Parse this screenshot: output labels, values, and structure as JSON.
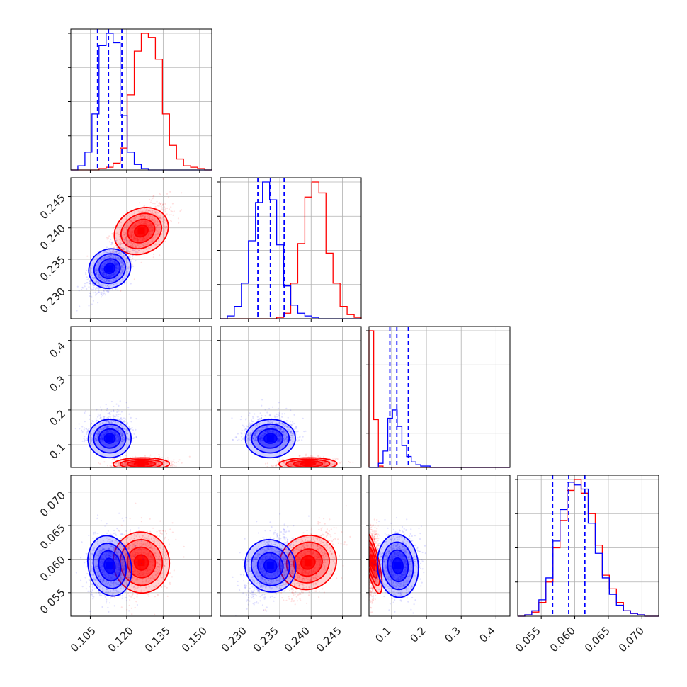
{
  "chart_data": {
    "type": "corner",
    "parameters": [
      {
        "range": [
          0.097,
          0.155
        ],
        "ticks": [
          "0.105",
          "0.120",
          "0.135",
          "0.150"
        ],
        "tick_values": [
          0.105,
          0.12,
          0.135,
          0.15
        ]
      },
      {
        "range": [
          0.2255,
          0.248
        ],
        "ticks": [
          "0.230",
          "0.235",
          "0.240",
          "0.245"
        ],
        "tick_values": [
          0.23,
          0.235,
          0.24,
          0.245
        ]
      },
      {
        "range": [
          0.035,
          0.44
        ],
        "ticks": [
          "0.1",
          "0.2",
          "0.3",
          "0.4"
        ],
        "tick_values": [
          0.1,
          0.2,
          0.3,
          0.4
        ]
      },
      {
        "range": [
          0.0515,
          0.0725
        ],
        "ticks": [
          "0.055",
          "0.060",
          "0.065",
          "0.070"
        ],
        "tick_values": [
          0.055,
          0.06,
          0.065,
          0.07
        ]
      }
    ],
    "series": [
      {
        "color": "#ff0000",
        "mean": [
          0.126,
          0.2395,
          0.045,
          0.0595
        ],
        "sd": [
          0.0055,
          0.0022,
          0.009,
          0.0024
        ]
      },
      {
        "color": "#0000ff",
        "mean": [
          0.113,
          0.2335,
          0.118,
          0.059
        ],
        "sd": [
          0.0042,
          0.0019,
          0.028,
          0.0024
        ],
        "quantiles": [
          [
            0.108,
            0.1125,
            0.118
          ],
          [
            0.2315,
            0.2335,
            0.2357
          ],
          [
            0.095,
            0.115,
            0.148
          ],
          [
            0.0567,
            0.0591,
            0.0615
          ]
        ]
      }
    ],
    "histograms": [
      {
        "bins": 20,
        "red": [
          0,
          0,
          0,
          0,
          1,
          2,
          5,
          16,
          55,
          87,
          100,
          97,
          81,
          41,
          18,
          8,
          3,
          2,
          1,
          0
        ],
        "blue": [
          0,
          3,
          13,
          41,
          91,
          100,
          93,
          40,
          13,
          4,
          1,
          0,
          0,
          0,
          0,
          0,
          0,
          0,
          0,
          0
        ]
      },
      {
        "bins": 20,
        "red": [
          0,
          0,
          0,
          0,
          0,
          0,
          0,
          0,
          1,
          4,
          26,
          55,
          89,
          100,
          92,
          48,
          26,
          9,
          3,
          1
        ],
        "blue": [
          0,
          2,
          9,
          26,
          57,
          85,
          100,
          87,
          54,
          24,
          10,
          4,
          2,
          1,
          0,
          0,
          0,
          0,
          0,
          0
        ]
      },
      {
        "bins": 30,
        "red": [
          100,
          35,
          1,
          0,
          0,
          0,
          0,
          0,
          0,
          0,
          0,
          0,
          0,
          0,
          0,
          0,
          0,
          0,
          0,
          0,
          0,
          0,
          0,
          0,
          0,
          0,
          0,
          0,
          0,
          0
        ],
        "blue": [
          0,
          0,
          3,
          12,
          36,
          42,
          30,
          16,
          8,
          4,
          2,
          1,
          1,
          0,
          0,
          0,
          0,
          0,
          0,
          0,
          0,
          0,
          0,
          0,
          0,
          0,
          0,
          0,
          0,
          0
        ]
      },
      {
        "bins": 20,
        "red": [
          0,
          1,
          3,
          10,
          25,
          50,
          70,
          92,
          100,
          90,
          75,
          52,
          30,
          20,
          10,
          4,
          2,
          1,
          0,
          0
        ],
        "blue": [
          0,
          1,
          4,
          12,
          28,
          55,
          78,
          98,
          96,
          93,
          68,
          46,
          28,
          16,
          8,
          4,
          2,
          1,
          0,
          0
        ]
      }
    ],
    "grid": true,
    "legend": "none"
  },
  "labels": {
    "x0": [
      "0.105",
      "0.120",
      "0.135",
      "0.150"
    ],
    "x1": [
      "0.230",
      "0.235",
      "0.240",
      "0.245"
    ],
    "x2": [
      "0.1",
      "0.2",
      "0.3",
      "0.4"
    ],
    "x3": [
      "0.055",
      "0.060",
      "0.065",
      "0.070"
    ],
    "y1": [
      "0.230",
      "0.235",
      "0.240",
      "0.245"
    ],
    "y2": [
      "0.1",
      "0.2",
      "0.3",
      "0.4"
    ],
    "y3": [
      "0.055",
      "0.060",
      "0.065",
      "0.070"
    ]
  }
}
